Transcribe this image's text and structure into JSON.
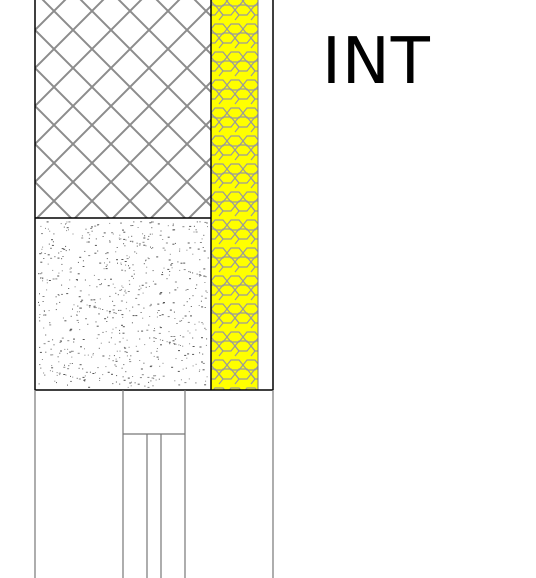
{
  "labels": {
    "side": "INT"
  },
  "colors": {
    "line": "#777777",
    "outline": "#000000",
    "insulation_fill": "#ffff00",
    "insulation_pattern": "#9a9a9a",
    "background": "#ffffff"
  },
  "layers": [
    {
      "name": "masonry-crosshatch",
      "pattern": "crosshatch"
    },
    {
      "name": "concrete-stipple",
      "pattern": "stipple"
    },
    {
      "name": "insulation-honeycomb",
      "pattern": "honeycomb"
    }
  ]
}
